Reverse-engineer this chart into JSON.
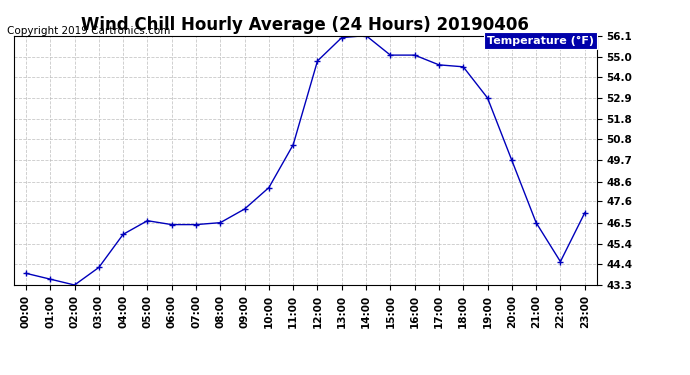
{
  "title": "Wind Chill Hourly Average (24 Hours) 20190406",
  "copyright": "Copyright 2019 Cartronics.com",
  "legend_label": "Temperature (°F)",
  "hours": [
    "00:00",
    "01:00",
    "02:00",
    "03:00",
    "04:00",
    "05:00",
    "06:00",
    "07:00",
    "08:00",
    "09:00",
    "10:00",
    "11:00",
    "12:00",
    "13:00",
    "14:00",
    "15:00",
    "16:00",
    "17:00",
    "18:00",
    "19:00",
    "20:00",
    "21:00",
    "22:00",
    "23:00"
  ],
  "values": [
    43.9,
    43.6,
    43.3,
    44.2,
    45.9,
    46.6,
    46.4,
    46.4,
    46.5,
    47.2,
    48.3,
    50.5,
    54.8,
    56.0,
    56.1,
    55.1,
    55.1,
    54.6,
    54.5,
    52.9,
    49.7,
    46.5,
    44.5,
    47.0
  ],
  "ylim_min": 43.3,
  "ylim_max": 56.1,
  "yticks": [
    43.3,
    44.4,
    45.4,
    46.5,
    47.6,
    48.6,
    49.7,
    50.8,
    51.8,
    52.9,
    54.0,
    55.0,
    56.1
  ],
  "line_color": "#0000bb",
  "bg_color": "#ffffff",
  "grid_color": "#bbbbbb",
  "title_fontsize": 12,
  "copyright_fontsize": 7.5,
  "tick_fontsize": 7.5,
  "legend_bg": "#0000aa",
  "legend_text_color": "#ffffff",
  "legend_fontsize": 8
}
